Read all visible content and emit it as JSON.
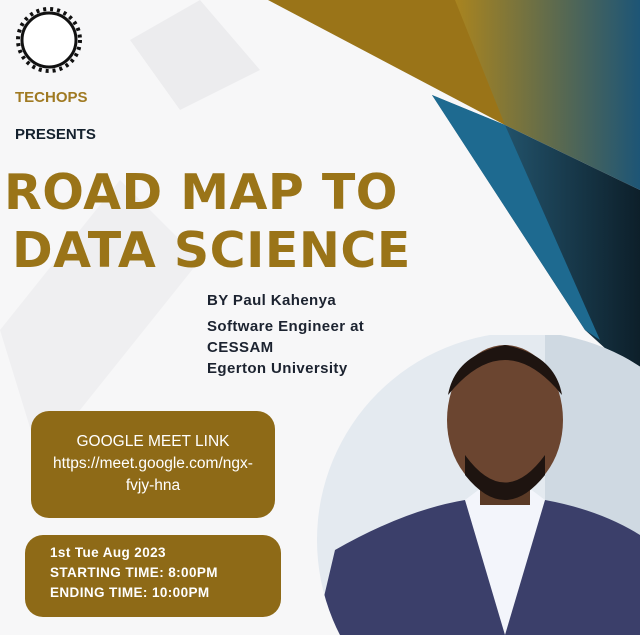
{
  "org": "TECHOPS",
  "presents": "PRESENTS",
  "title_line1": "ROAD MAP TO",
  "title_line2": "DATA SCIENCE",
  "speaker": {
    "by": "BY Paul Kahenya",
    "role": "Software Engineer at",
    "company": "CESSAM",
    "university": "Egerton University"
  },
  "meet": {
    "heading": "GOOGLE MEET LINK",
    "link_line1": "https://meet.google.com/ngx-",
    "link_line2": "fvjy-hna"
  },
  "schedule": {
    "date": "1st  Tue Aug 2023",
    "start": "STARTING TIME: 8:00PM",
    "end": "ENDING TIME: 10:00PM"
  },
  "colors": {
    "gold": "#8e6a17",
    "title_gold": "#9a7418",
    "blue": "#1e6a90",
    "dark": "#14212e"
  }
}
